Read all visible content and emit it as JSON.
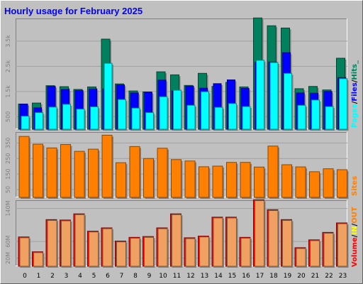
{
  "title": "Hourly usage for February 2025",
  "colors": {
    "background": "#c0c0c0",
    "plot": "#c0c0c0",
    "title": "#0000ff",
    "hits": "#00805c",
    "files": "#0000ff",
    "pages": "#00ffff",
    "sites": "#ff8000",
    "kbytes": "#ff0000",
    "in": "#ffff00",
    "out": "#ff8000",
    "axis_text": "#808080",
    "legend_slash": "#000000"
  },
  "legend": {
    "top": [
      "Pages",
      "/",
      "Files",
      "/",
      "Hits",
      "_"
    ],
    "mid": [
      "Sites"
    ],
    "bottom": [
      "Volume",
      "/",
      "IN",
      "/",
      "OUT"
    ]
  },
  "chart_data": [
    {
      "type": "bar",
      "title": "Hourly usage for February 2025",
      "categories": [
        "0",
        "1",
        "2",
        "3",
        "4",
        "5",
        "6",
        "7",
        "8",
        "9",
        "10",
        "11",
        "12",
        "13",
        "14",
        "15",
        "16",
        "17",
        "18",
        "19",
        "20",
        "21",
        "22",
        "23"
      ],
      "ylim": [
        0,
        4400
      ],
      "yticks": [
        "500",
        "1.5k",
        "2.5k",
        "3.5k"
      ],
      "ytick_values": [
        500,
        1500,
        2500,
        3500
      ],
      "series": [
        {
          "name": "Hits",
          "values": [
            1000,
            1040,
            1730,
            1690,
            1580,
            1680,
            3580,
            1800,
            1520,
            1480,
            2280,
            2160,
            1740,
            2220,
            1700,
            1860,
            1680,
            4420,
            4110,
            4020,
            1610,
            1700,
            1560,
            2820
          ]
        },
        {
          "name": "Files",
          "values": [
            1000,
            850,
            1700,
            1580,
            1540,
            1600,
            1600,
            1760,
            1440,
            1470,
            1950,
            1520,
            1710,
            1630,
            1810,
            1960,
            1620,
            2660,
            2670,
            3040,
            1440,
            1430,
            1500,
            2050
          ]
        },
        {
          "name": "Pages",
          "values": [
            520,
            660,
            880,
            990,
            800,
            890,
            2620,
            1180,
            840,
            660,
            1290,
            1550,
            950,
            1490,
            870,
            1020,
            900,
            2740,
            2650,
            2220,
            950,
            1160,
            900,
            2010
          ]
        }
      ]
    },
    {
      "type": "bar",
      "categories": [
        "0",
        "1",
        "2",
        "3",
        "4",
        "5",
        "6",
        "7",
        "8",
        "9",
        "10",
        "11",
        "12",
        "13",
        "14",
        "15",
        "16",
        "17",
        "18",
        "19",
        "20",
        "21",
        "22",
        "23"
      ],
      "ylim": [
        0,
        420
      ],
      "yticks": [
        "50",
        "150",
        "250",
        "350"
      ],
      "ytick_values": [
        50,
        150,
        250,
        350
      ],
      "series": [
        {
          "name": "Sites",
          "values": [
            392,
            342,
            318,
            340,
            296,
            310,
            400,
            223,
            327,
            250,
            316,
            243,
            234,
            197,
            201,
            225,
            225,
            195,
            330,
            210,
            196,
            165,
            184,
            178
          ]
        }
      ]
    },
    {
      "type": "bar",
      "categories": [
        "0",
        "1",
        "2",
        "3",
        "4",
        "5",
        "6",
        "7",
        "8",
        "9",
        "10",
        "11",
        "12",
        "13",
        "14",
        "15",
        "16",
        "17",
        "18",
        "19",
        "20",
        "21",
        "22",
        "23"
      ],
      "ylim": [
        0,
        160
      ],
      "yticks": [
        "20M",
        "60M",
        "140M"
      ],
      "ytick_values": [
        20,
        60,
        140
      ],
      "series": [
        {
          "name": "Volume",
          "values": [
            71,
            35,
            113,
            112,
            127,
            85,
            93,
            61,
            70,
            72,
            93,
            127,
            69,
            73,
            119,
            119,
            70,
            161,
            137,
            113,
            45,
            64,
            82,
            105
          ]
        },
        {
          "name": "IN",
          "values": [
            2,
            2,
            2,
            2,
            2,
            2,
            2,
            2,
            2,
            2,
            2,
            2,
            2,
            2,
            2,
            2,
            2,
            2,
            2,
            2,
            2,
            2,
            2,
            2
          ]
        },
        {
          "name": "OUT",
          "values": [
            69,
            33,
            111,
            110,
            125,
            83,
            91,
            59,
            68,
            70,
            91,
            125,
            67,
            71,
            117,
            117,
            68,
            159,
            135,
            111,
            43,
            62,
            80,
            103
          ]
        }
      ]
    }
  ]
}
